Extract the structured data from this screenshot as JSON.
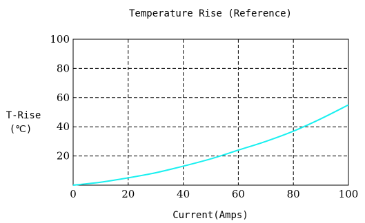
{
  "chart_data": {
    "type": "line",
    "title": "Temperature Rise (Reference)",
    "xlabel": "Current(Amps)",
    "ylabel_line1": "T-Rise",
    "ylabel_line2": "(℃)",
    "xlim": [
      0,
      100
    ],
    "ylim": [
      0,
      100
    ],
    "x_ticks": [
      0,
      20,
      40,
      60,
      80,
      100
    ],
    "y_ticks": [
      20,
      40,
      60,
      80,
      100
    ],
    "grid": true,
    "series": [
      {
        "color": "#19f0f0",
        "x": [
          0,
          10,
          20,
          30,
          40,
          50,
          60,
          70,
          80,
          90,
          100
        ],
        "y": [
          0,
          2,
          5,
          8.5,
          13,
          18,
          24,
          30,
          37,
          45.5,
          55
        ]
      }
    ]
  }
}
